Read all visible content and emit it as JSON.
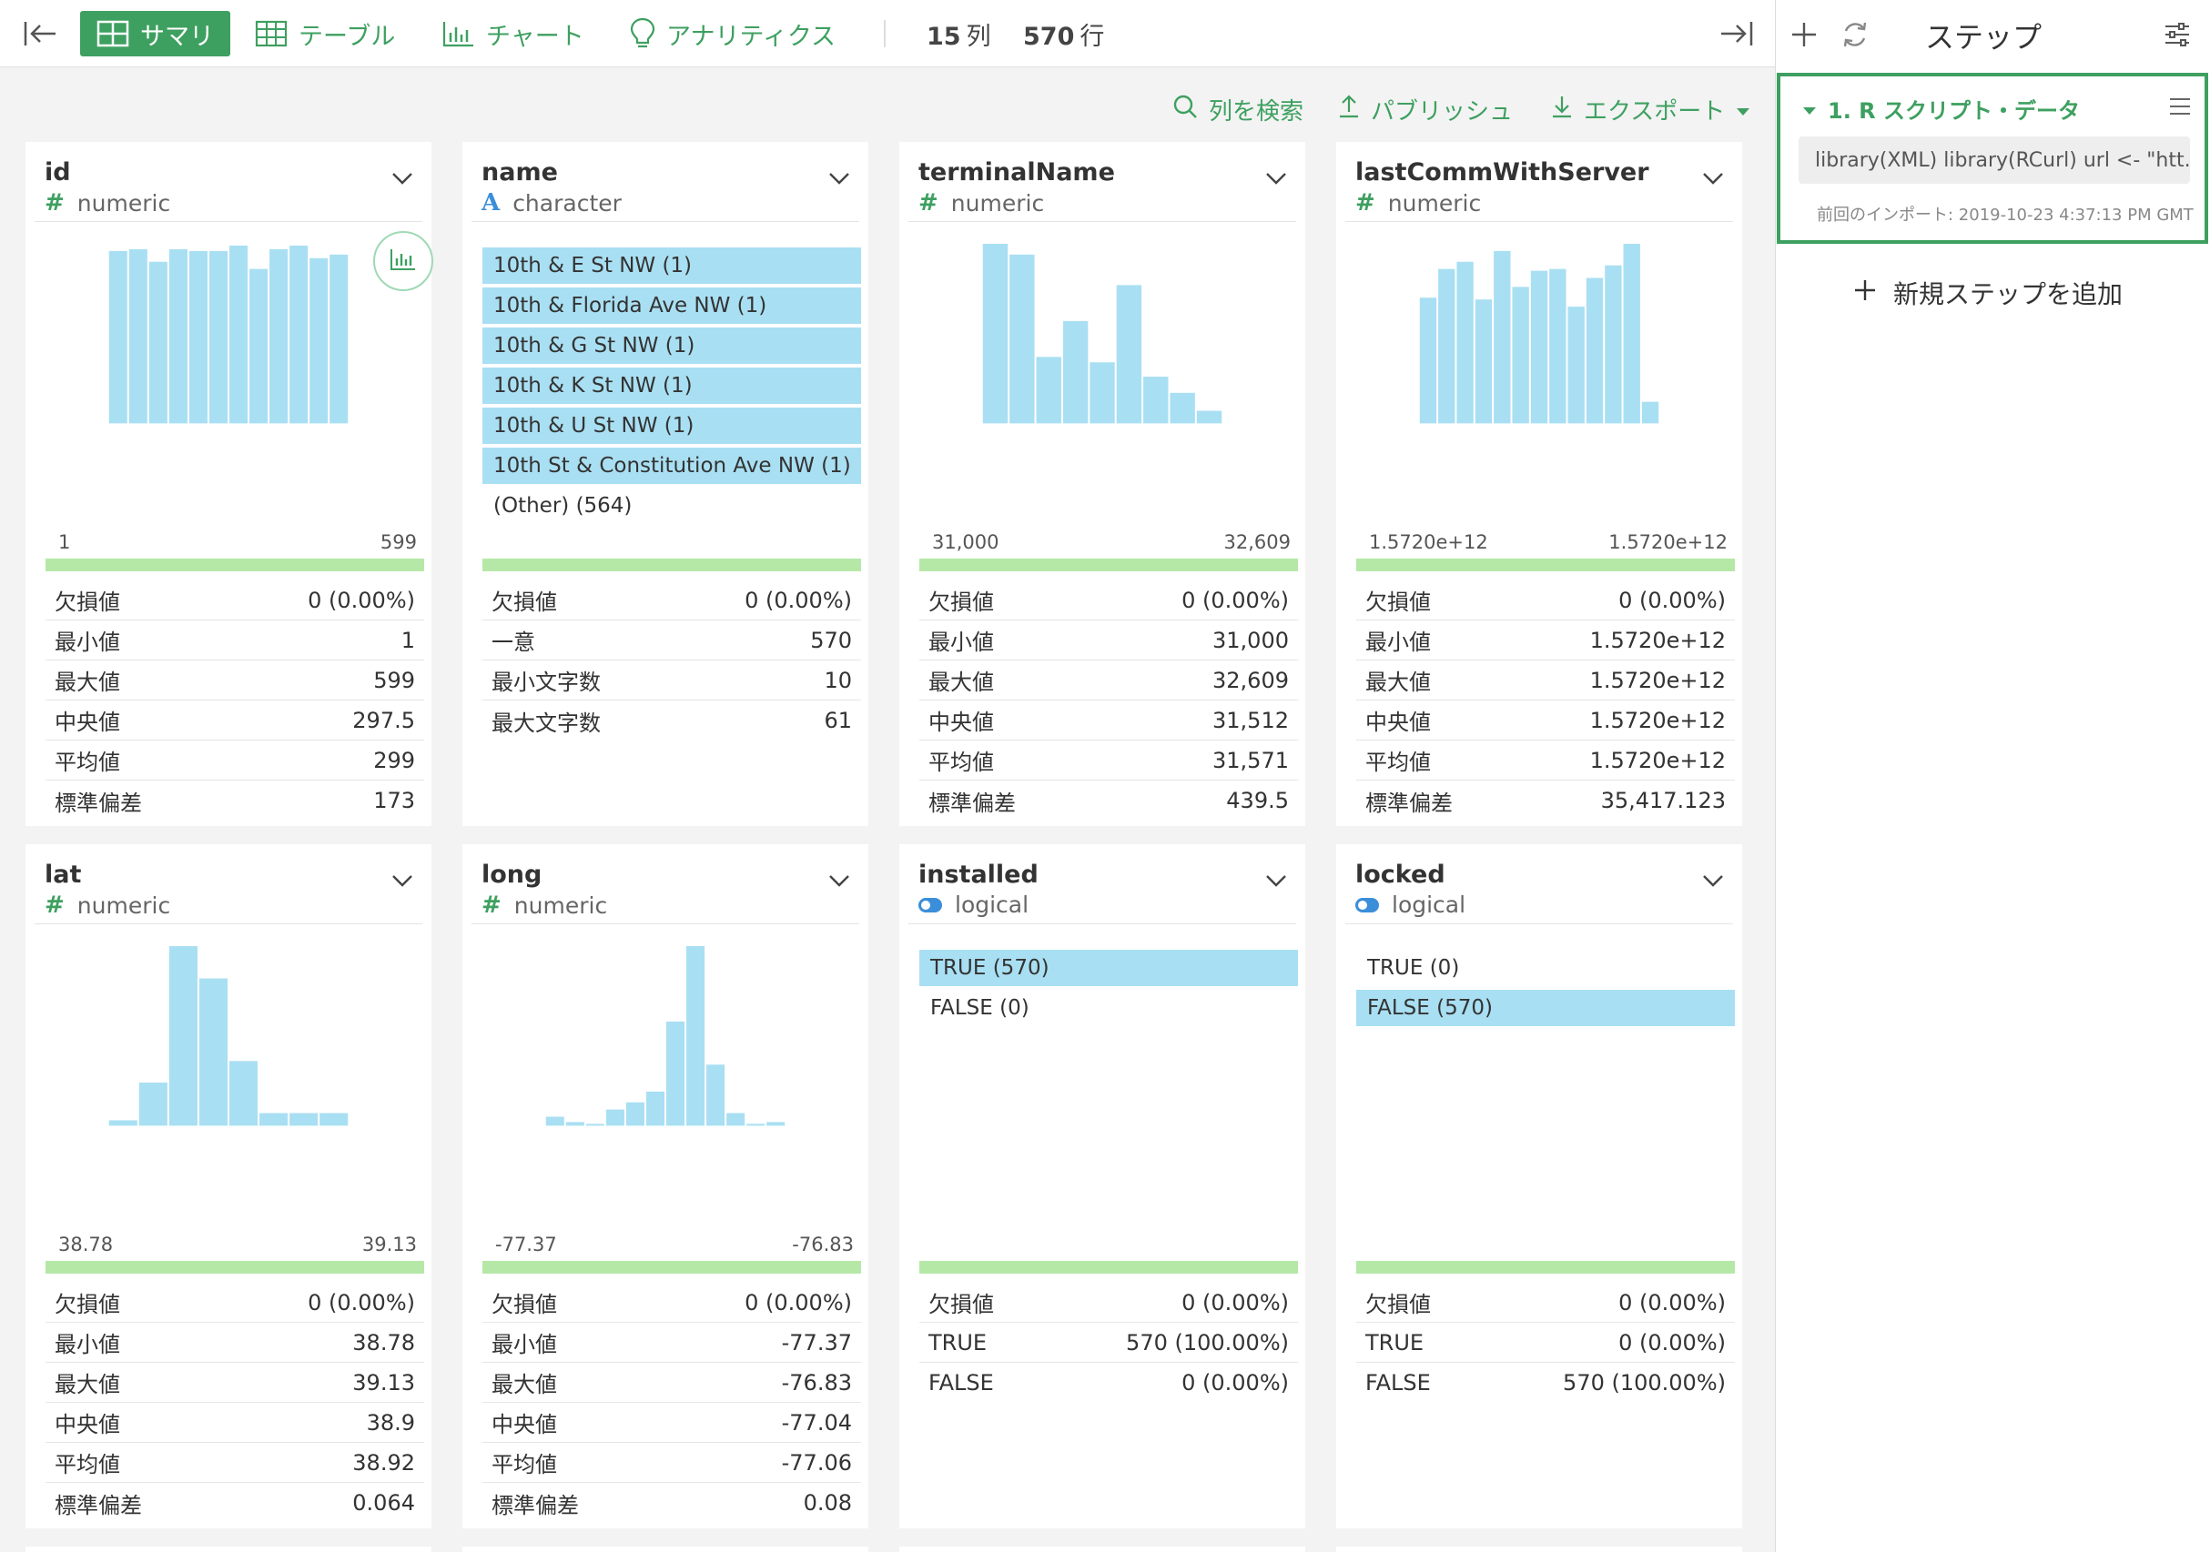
{
  "toolbar": {
    "tabs": [
      {
        "label": "サマリ",
        "icon": "summary-icon",
        "active": true
      },
      {
        "label": "テーブル",
        "icon": "table-icon",
        "active": false
      },
      {
        "label": "チャート",
        "icon": "chart-icon",
        "active": false
      },
      {
        "label": "アナリティクス",
        "icon": "lightbulb-icon",
        "active": false
      }
    ],
    "column_count": "15",
    "column_unit": "列",
    "row_count": "570",
    "row_unit": "行"
  },
  "actions": {
    "search_columns": "列を検索",
    "publish": "パブリッシュ",
    "export": "エクスポート"
  },
  "columns": [
    {
      "name": "id",
      "type": "numeric",
      "chart": {
        "type": "histogram",
        "values": [
          96,
          97,
          90,
          97,
          96,
          96,
          99,
          86,
          97,
          99,
          92,
          94
        ],
        "ymax": 100
      },
      "axis_min": "1",
      "axis_max": "599",
      "stats": [
        {
          "label": "欠損値",
          "value": "0 (0.00%)"
        },
        {
          "label": "最小値",
          "value": "1"
        },
        {
          "label": "最大値",
          "value": "599"
        },
        {
          "label": "中央値",
          "value": "297.5"
        },
        {
          "label": "平均値",
          "value": "299"
        },
        {
          "label": "標準偏差",
          "value": "173"
        }
      ]
    },
    {
      "name": "name",
      "type": "character",
      "categories": [
        {
          "label": "10th & E St NW (1)",
          "highlight": true
        },
        {
          "label": "10th & Florida Ave NW (1)",
          "highlight": true
        },
        {
          "label": "10th & G St NW (1)",
          "highlight": true
        },
        {
          "label": "10th & K St NW (1)",
          "highlight": true
        },
        {
          "label": "10th & U St NW (1)",
          "highlight": true
        },
        {
          "label": "10th St & Constitution Ave NW (1)",
          "highlight": true
        },
        {
          "label": "(Other) (564)",
          "highlight": false
        }
      ],
      "stats": [
        {
          "label": "欠損値",
          "value": "0 (0.00%)"
        },
        {
          "label": "一意",
          "value": "570"
        },
        {
          "label": "最小文字数",
          "value": "10"
        },
        {
          "label": "最大文字数",
          "value": "61"
        }
      ]
    },
    {
      "name": "terminalName",
      "type": "numeric",
      "chart": {
        "type": "histogram",
        "values": [
          100,
          94,
          37,
          57,
          34,
          77,
          26,
          17,
          7
        ],
        "ymax": 100
      },
      "axis_min": "31,000",
      "axis_max": "32,609",
      "stats": [
        {
          "label": "欠損値",
          "value": "0 (0.00%)"
        },
        {
          "label": "最小値",
          "value": "31,000"
        },
        {
          "label": "最大値",
          "value": "32,609"
        },
        {
          "label": "中央値",
          "value": "31,512"
        },
        {
          "label": "平均値",
          "value": "31,571"
        },
        {
          "label": "標準偏差",
          "value": "439.5"
        }
      ]
    },
    {
      "name": "lastCommWithServer",
      "type": "numeric",
      "chart": {
        "type": "histogram",
        "values": [
          70,
          86,
          90,
          69,
          96,
          76,
          85,
          86,
          65,
          81,
          88,
          100,
          12
        ],
        "ymax": 100
      },
      "axis_min": "1.5720e+12",
      "axis_max": "1.5720e+12",
      "stats": [
        {
          "label": "欠損値",
          "value": "0 (0.00%)"
        },
        {
          "label": "最小値",
          "value": "1.5720e+12"
        },
        {
          "label": "最大値",
          "value": "1.5720e+12"
        },
        {
          "label": "中央値",
          "value": "1.5720e+12"
        },
        {
          "label": "平均値",
          "value": "1.5720e+12"
        },
        {
          "label": "標準偏差",
          "value": "35,417.123"
        }
      ]
    },
    {
      "name": "lat",
      "type": "numeric",
      "chart": {
        "type": "histogram",
        "values": [
          3,
          24,
          100,
          82,
          36,
          7,
          7,
          7
        ],
        "ymax": 100
      },
      "axis_min": "38.78",
      "axis_max": "39.13",
      "stats": [
        {
          "label": "欠損値",
          "value": "0 (0.00%)"
        },
        {
          "label": "最小値",
          "value": "38.78"
        },
        {
          "label": "最大値",
          "value": "39.13"
        },
        {
          "label": "中央値",
          "value": "38.9"
        },
        {
          "label": "平均値",
          "value": "38.92"
        },
        {
          "label": "標準偏差",
          "value": "0.064"
        }
      ]
    },
    {
      "name": "long",
      "type": "numeric",
      "chart": {
        "type": "histogram",
        "values": [
          5,
          2,
          1,
          9,
          13,
          19,
          58,
          100,
          34,
          7,
          1,
          2
        ],
        "ymax": 100
      },
      "axis_min": "-77.37",
      "axis_max": "-76.83",
      "stats": [
        {
          "label": "欠損値",
          "value": "0 (0.00%)"
        },
        {
          "label": "最小値",
          "value": "-77.37"
        },
        {
          "label": "最大値",
          "value": "-76.83"
        },
        {
          "label": "中央値",
          "value": "-77.04"
        },
        {
          "label": "平均値",
          "value": "-77.06"
        },
        {
          "label": "標準偏差",
          "value": "0.08"
        }
      ]
    },
    {
      "name": "installed",
      "type": "logical",
      "categories": [
        {
          "label": "TRUE (570)",
          "highlight": true
        },
        {
          "label": "FALSE (0)",
          "highlight": false
        }
      ],
      "stats": [
        {
          "label": "欠損値",
          "value": "0 (0.00%)"
        },
        {
          "label": "TRUE",
          "value": "570 (100.00%)"
        },
        {
          "label": "FALSE",
          "value": "0 (0.00%)"
        }
      ]
    },
    {
      "name": "locked",
      "type": "logical",
      "categories": [
        {
          "label": "TRUE (0)",
          "highlight": false
        },
        {
          "label": "FALSE (570)",
          "highlight": true
        }
      ],
      "stats": [
        {
          "label": "欠損値",
          "value": "0 (0.00%)"
        },
        {
          "label": "TRUE",
          "value": "0 (0.00%)"
        },
        {
          "label": "FALSE",
          "value": "570 (100.00%)"
        }
      ]
    }
  ],
  "colors": {
    "accent": "#3ea060",
    "bar": "#a9dff2",
    "valid_bar": "#b5e8a7"
  },
  "steps_panel": {
    "title": "ステップ",
    "step": {
      "title": "1. R スクリプト・データ",
      "code": "library(XML) library(RCurl) url <- \"htt...",
      "last_import": "前回のインポート: 2019-10-23 4:37:13 PM GMT"
    },
    "add_step": "新規ステップを追加"
  }
}
